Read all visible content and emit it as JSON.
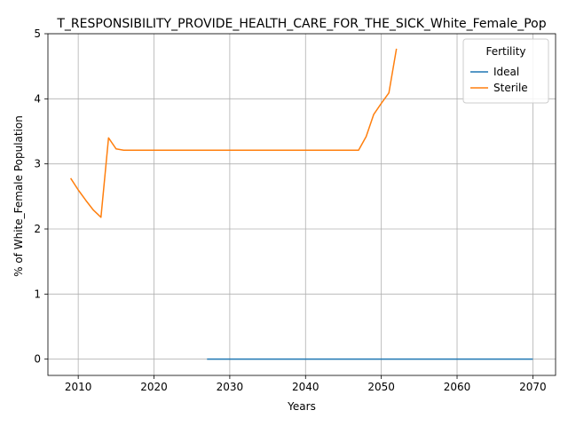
{
  "chart_data": {
    "type": "line",
    "title": "T_RESPONSIBILITY_PROVIDE_HEALTH_CARE_FOR_THE_SICK_White_Female_Pop",
    "xlabel": "Years",
    "ylabel": "% of White_Female Population",
    "xlim": [
      2006,
      2073
    ],
    "ylim": [
      -0.25,
      5
    ],
    "xticks": [
      2010,
      2020,
      2030,
      2040,
      2050,
      2060,
      2070
    ],
    "yticks": [
      0,
      1,
      2,
      3,
      4,
      5
    ],
    "grid": true,
    "legend": {
      "title": "Fertility",
      "placement": "top-right"
    },
    "series": [
      {
        "name": "Ideal",
        "color": "#1f77b4",
        "x": [
          2027,
          2030,
          2035,
          2040,
          2045,
          2050,
          2055,
          2060,
          2065,
          2070
        ],
        "y": [
          0,
          0,
          0,
          0,
          0,
          0,
          0,
          0,
          0,
          0
        ]
      },
      {
        "name": "Sterile",
        "color": "#ff7f0e",
        "x": [
          2009,
          2010,
          2011,
          2012,
          2013,
          2014,
          2015,
          2016,
          2017,
          2020,
          2025,
          2030,
          2035,
          2040,
          2045,
          2047,
          2048,
          2049,
          2050,
          2051,
          2052
        ],
        "y": [
          2.78,
          2.6,
          2.44,
          2.29,
          2.18,
          3.4,
          3.23,
          3.21,
          3.21,
          3.21,
          3.21,
          3.21,
          3.21,
          3.21,
          3.21,
          3.21,
          3.42,
          3.76,
          3.93,
          4.09,
          4.77
        ]
      }
    ]
  }
}
